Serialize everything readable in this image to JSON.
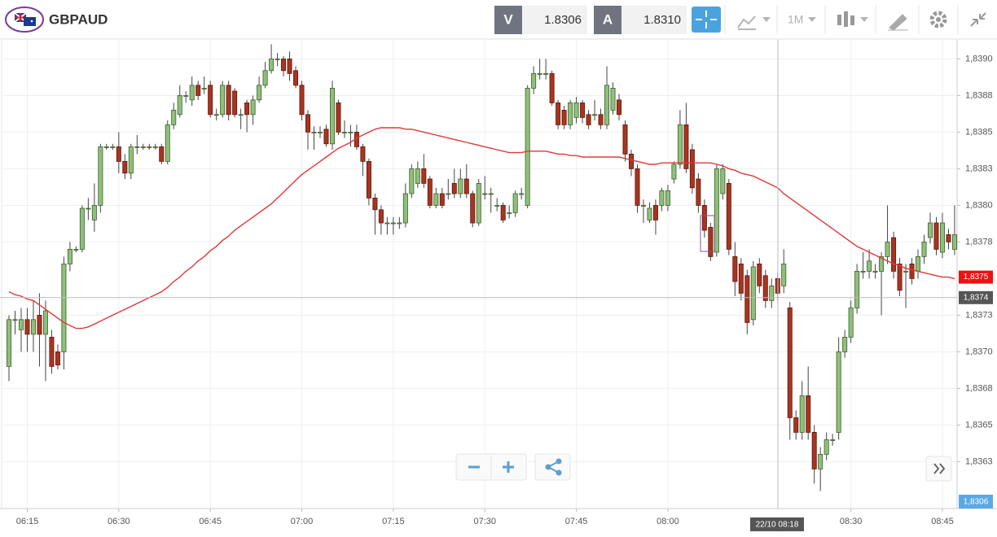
{
  "toolbar": {
    "symbol": "GBPAUD",
    "bid_label": "V",
    "bid": "1.8306",
    "ask_label": "A",
    "ask": "1.8310",
    "timeframe": "1M"
  },
  "chart_data": {
    "type": "candlestick",
    "categories": [
      null,
      null,
      null,
      "06:15",
      null,
      null,
      null,
      null,
      null,
      null,
      null,
      null,
      null,
      null,
      null,
      null,
      null,
      null,
      "06:30",
      null,
      null,
      null,
      null,
      null,
      null,
      null,
      null,
      null,
      null,
      null,
      null,
      null,
      null,
      "06:45",
      null,
      null,
      null,
      null,
      null,
      null,
      null,
      null,
      null,
      null,
      null,
      null,
      null,
      null,
      "07:00",
      null,
      null,
      null,
      null,
      null,
      null,
      null,
      null,
      null,
      null,
      null,
      null,
      null,
      null,
      "07:15",
      null,
      null,
      null,
      null,
      null,
      null,
      null,
      null,
      null,
      null,
      null,
      null,
      null,
      null,
      "07:30",
      null,
      null,
      null,
      null,
      null,
      null,
      null,
      null,
      null,
      null,
      null,
      null,
      null,
      null,
      "07:45",
      null,
      null,
      null,
      null,
      null,
      null,
      null,
      null,
      null,
      null,
      null,
      null,
      null,
      null,
      "08:00",
      null,
      null,
      null,
      null,
      null,
      null,
      null,
      null,
      null,
      null,
      null,
      null,
      null,
      null,
      null,
      null,
      null,
      null,
      null,
      null,
      null,
      null,
      null,
      null,
      null,
      null,
      null,
      null,
      null,
      "08:30",
      null,
      null,
      null,
      null,
      null,
      null,
      null,
      null,
      null,
      null,
      null,
      null,
      null,
      null,
      "08:45",
      null,
      null
    ],
    "open": [
      1.8369,
      1.83722,
      1.83715,
      1.83722,
      1.83712,
      1.83725,
      1.83712,
      1.8371,
      1.837,
      1.837,
      1.8376,
      1.8377,
      1.8377,
      1.83798,
      1.8379,
      1.838,
      1.8384,
      1.8384,
      1.8384,
      1.8383,
      1.83822,
      1.8384,
      1.8384,
      1.8384,
      1.8384,
      1.8384,
      1.8383,
      1.83855,
      1.83862,
      1.83875,
      1.83872,
      1.83882,
      1.8388,
      1.83882,
      1.83862,
      1.83862,
      1.83882,
      1.83878,
      1.83862,
      1.8387,
      1.83862,
      1.83872,
      1.83882,
      1.83892,
      1.839,
      1.839,
      1.839,
      1.83892,
      1.83882,
      1.83862,
      1.8385,
      1.8385,
      1.83852,
      1.83842,
      1.8387,
      1.8385,
      1.8385,
      1.8385,
      1.8384,
      1.8383,
      1.83805,
      1.83797,
      1.83788,
      1.83788,
      1.83788,
      1.83788,
      1.83808,
      1.83815,
      1.83825,
      1.83818,
      1.838,
      1.83808,
      1.83808,
      1.83815,
      1.83808,
      1.83818,
      1.83808,
      1.83788,
      1.83808,
      1.83808,
      1.838,
      1.838,
      1.83795,
      1.83795,
      1.83808,
      1.838,
      1.8388,
      1.8389,
      1.8389,
      1.8389,
      1.8387,
      1.83865,
      1.83855,
      1.8386,
      1.8387,
      1.83862,
      1.83862,
      1.83862,
      1.83855,
      1.83865,
      1.83872,
      1.83855,
      1.83835,
      1.83825,
      1.838,
      1.8379,
      1.838,
      1.838,
      1.838,
      1.83818,
      1.83828,
      1.83855,
      1.83838,
      1.83818,
      1.838,
      1.83785,
      1.83768,
      1.83808,
      1.83815,
      1.83765,
      1.8376,
      1.83752,
      1.83722,
      1.8376,
      1.83752,
      1.83735,
      1.8375,
      1.83745,
      1.8373,
      1.83655,
      1.83645,
      1.8367,
      1.83645,
      1.8362,
      1.8363,
      1.8364,
      1.83645,
      1.837,
      1.8371,
      1.8373,
      1.83755,
      1.83755,
      1.83755,
      1.83755,
      1.83765,
      1.83778,
      1.8376,
      1.83755,
      1.8376,
      1.83755,
      1.83765,
      1.83778,
      1.83788,
      1.83768,
      1.8378,
      1.8377
    ],
    "high": [
      1.83725,
      1.83728,
      1.8373,
      1.8373,
      1.83735,
      1.8374,
      1.83735,
      1.83715,
      1.83705,
      1.83765,
      1.83775,
      1.83772,
      1.838,
      1.83805,
      1.83815,
      1.83842,
      1.83842,
      1.83842,
      1.8385,
      1.83835,
      1.83842,
      1.83848,
      1.83842,
      1.83842,
      1.83842,
      1.83842,
      1.83858,
      1.8387,
      1.83882,
      1.83878,
      1.83888,
      1.83885,
      1.83888,
      1.83885,
      1.83866,
      1.83885,
      1.83885,
      1.8388,
      1.83866,
      1.83872,
      1.83875,
      1.83888,
      1.83898,
      1.8391,
      1.83904,
      1.83902,
      1.83905,
      1.83895,
      1.83885,
      1.83865,
      1.83854,
      1.83854,
      1.83855,
      1.83885,
      1.83872,
      1.83858,
      1.83855,
      1.83855,
      1.83842,
      1.83832,
      1.83808,
      1.838,
      1.83792,
      1.83792,
      1.83792,
      1.83815,
      1.83828,
      1.8383,
      1.83835,
      1.8382,
      1.83812,
      1.83812,
      1.83818,
      1.83825,
      1.83825,
      1.83828,
      1.8381,
      1.83818,
      1.8382,
      1.83812,
      1.83805,
      1.83802,
      1.838,
      1.8381,
      1.83812,
      1.83882,
      1.83895,
      1.839,
      1.839,
      1.83892,
      1.83872,
      1.83868,
      1.83872,
      1.83874,
      1.83872,
      1.83865,
      1.83872,
      1.83866,
      1.83895,
      1.83884,
      1.83876,
      1.83858,
      1.83838,
      1.83828,
      1.83804,
      1.83802,
      1.83804,
      1.83812,
      1.83814,
      1.8383,
      1.83865,
      1.8387,
      1.83842,
      1.83822,
      1.83804,
      1.83788,
      1.83828,
      1.83828,
      1.83818,
      1.83775,
      1.83764,
      1.83756,
      1.83762,
      1.83764,
      1.83756,
      1.8375,
      1.83754,
      1.8377,
      1.83734,
      1.8366,
      1.8368,
      1.8369,
      1.8365,
      1.83635,
      1.83645,
      1.83644,
      1.8371,
      1.83715,
      1.83735,
      1.8376,
      1.83768,
      1.8377,
      1.8376,
      1.83768,
      1.838,
      1.83782,
      1.83764,
      1.8376,
      1.83764,
      1.8377,
      1.8378,
      1.83795,
      1.83792,
      1.83795,
      1.83784,
      1.838
    ],
    "low": [
      1.8368,
      1.83712,
      1.837,
      1.837,
      1.837,
      1.8369,
      1.8368,
      1.83685,
      1.83688,
      1.83688,
      1.83755,
      1.83768,
      1.83768,
      1.8379,
      1.83782,
      1.83795,
      1.83838,
      1.83838,
      1.83822,
      1.83818,
      1.83818,
      1.83835,
      1.83838,
      1.83838,
      1.83838,
      1.83828,
      1.83828,
      1.83852,
      1.8386,
      1.8387,
      1.83868,
      1.83872,
      1.83876,
      1.8386,
      1.83858,
      1.8386,
      1.83858,
      1.8386,
      1.83852,
      1.8385,
      1.83855,
      1.8387,
      1.8388,
      1.8389,
      1.83895,
      1.83888,
      1.83885,
      1.8388,
      1.83858,
      1.83838,
      1.83838,
      1.83846,
      1.8384,
      1.83838,
      1.83848,
      1.83846,
      1.8384,
      1.83838,
      1.8382,
      1.838,
      1.8378,
      1.8378,
      1.8378,
      1.8378,
      1.83784,
      1.83785,
      1.83805,
      1.83812,
      1.83812,
      1.83798,
      1.83798,
      1.83798,
      1.83804,
      1.83805,
      1.83805,
      1.83805,
      1.83785,
      1.83786,
      1.83804,
      1.83795,
      1.83796,
      1.83788,
      1.83791,
      1.83792,
      1.83804,
      1.83798,
      1.83876,
      1.83886,
      1.83886,
      1.83868,
      1.83852,
      1.83852,
      1.83852,
      1.83856,
      1.83856,
      1.83852,
      1.83858,
      1.83852,
      1.83852,
      1.83862,
      1.83858,
      1.8383,
      1.8382,
      1.83795,
      1.83788,
      1.83788,
      1.8378,
      1.83796,
      1.83796,
      1.83815,
      1.83825,
      1.83822,
      1.83808,
      1.83795,
      1.83778,
      1.83762,
      1.83765,
      1.83804,
      1.83766,
      1.83738,
      1.83735,
      1.83712,
      1.83718,
      1.8374,
      1.8373,
      1.8373,
      1.83735,
      1.8374,
      1.8364,
      1.8364,
      1.8364,
      1.8364,
      1.8361,
      1.83605,
      1.83626,
      1.83636,
      1.8364,
      1.83696,
      1.83706,
      1.83726,
      1.8375,
      1.8375,
      1.8375,
      1.83725,
      1.8376,
      1.8375,
      1.83738,
      1.8373,
      1.83746,
      1.8375,
      1.8376,
      1.83774,
      1.83766,
      1.83764,
      1.8377,
      1.83766
    ],
    "close": [
      1.83722,
      1.83722,
      1.83722,
      1.83712,
      1.83722,
      1.83712,
      1.83728,
      1.8369,
      1.83691,
      1.8376,
      1.8377,
      1.8377,
      1.83798,
      1.83798,
      1.838,
      1.8384,
      1.8384,
      1.8384,
      1.8383,
      1.83822,
      1.8384,
      1.8384,
      1.8384,
      1.8384,
      1.8384,
      1.8383,
      1.83855,
      1.83865,
      1.83875,
      1.83875,
      1.83882,
      1.83875,
      1.8388,
      1.83862,
      1.83862,
      1.83882,
      1.83862,
      1.83862,
      1.83862,
      1.83862,
      1.83872,
      1.83882,
      1.83892,
      1.839,
      1.839,
      1.83892,
      1.8389,
      1.83882,
      1.83862,
      1.8385,
      1.8385,
      1.8385,
      1.83842,
      1.8388,
      1.8385,
      1.8385,
      1.8385,
      1.8384,
      1.8383,
      1.83805,
      1.83797,
      1.83788,
      1.83788,
      1.83788,
      1.83788,
      1.83808,
      1.83825,
      1.83825,
      1.83815,
      1.838,
      1.83808,
      1.838,
      1.83808,
      1.83808,
      1.83818,
      1.83808,
      1.83788,
      1.83815,
      1.83808,
      1.83808,
      1.838,
      1.8379,
      1.83795,
      1.83808,
      1.83808,
      1.8388,
      1.8389,
      1.8389,
      1.8389,
      1.8387,
      1.83855,
      1.83855,
      1.8387,
      1.8387,
      1.8386,
      1.83855,
      1.83862,
      1.83855,
      1.83882,
      1.8388,
      1.83862,
      1.83835,
      1.83825,
      1.838,
      1.838,
      1.83798,
      1.8379,
      1.8381,
      1.8381,
      1.83828,
      1.83855,
      1.83825,
      1.83812,
      1.838,
      1.83783,
      1.83765,
      1.83825,
      1.83825,
      1.8377,
      1.83748,
      1.8374,
      1.8372,
      1.83758,
      1.83745,
      1.83735,
      1.83745,
      1.8374,
      1.8376,
      1.83655,
      1.83645,
      1.8367,
      1.83645,
      1.8362,
      1.8363,
      1.8364,
      1.8364,
      1.837,
      1.8371,
      1.8373,
      1.83755,
      1.83755,
      1.83762,
      1.83755,
      1.83765,
      1.83775,
      1.83755,
      1.83742,
      1.83755,
      1.8375,
      1.83765,
      1.83775,
      1.83788,
      1.8377,
      1.83788,
      1.83775,
      1.8378
    ],
    "up_color": "#8fc07a",
    "down_color": "#a9341f",
    "ma": {
      "color": "#e0383a",
      "values": [
        1.83741,
        1.83739,
        1.83738,
        1.83736,
        1.83735,
        1.83732,
        1.83729,
        1.83726,
        1.83723,
        1.8372,
        1.83718,
        1.83716,
        1.83716,
        1.83717,
        1.83719,
        1.83721,
        1.83723,
        1.83725,
        1.83727,
        1.83729,
        1.83731,
        1.83733,
        1.83735,
        1.83737,
        1.83739,
        1.83741,
        1.83744,
        1.83748,
        1.83751,
        1.83755,
        1.83758,
        1.83762,
        1.83765,
        1.83769,
        1.83772,
        1.83776,
        1.83779,
        1.83783,
        1.83786,
        1.83789,
        1.83792,
        1.83795,
        1.83798,
        1.83801,
        1.83805,
        1.83809,
        1.83813,
        1.83817,
        1.83821,
        1.83824,
        1.83827,
        1.8383,
        1.83833,
        1.83836,
        1.83839,
        1.83841,
        1.83843,
        1.83846,
        1.83848,
        1.8385,
        1.83852,
        1.83853,
        1.83853,
        1.83853,
        1.83853,
        1.83852,
        1.83852,
        1.83851,
        1.8385,
        1.83849,
        1.83848,
        1.83847,
        1.83846,
        1.83845,
        1.83844,
        1.83843,
        1.83842,
        1.83841,
        1.8384,
        1.83839,
        1.83838,
        1.83837,
        1.83836,
        1.83836,
        1.83836,
        1.83837,
        1.83837,
        1.83837,
        1.83837,
        1.83836,
        1.83835,
        1.83835,
        1.83834,
        1.83834,
        1.83833,
        1.83833,
        1.83833,
        1.83833,
        1.83833,
        1.83833,
        1.83833,
        1.83832,
        1.83831,
        1.8383,
        1.83829,
        1.83828,
        1.83828,
        1.83829,
        1.83829,
        1.83829,
        1.83829,
        1.83829,
        1.83829,
        1.83829,
        1.83829,
        1.83829,
        1.83828,
        1.83827,
        1.83825,
        1.83824,
        1.83822,
        1.83821,
        1.8382,
        1.83818,
        1.83816,
        1.83814,
        1.83812,
        1.83808,
        1.83805,
        1.83802,
        1.83799,
        1.83796,
        1.83793,
        1.8379,
        1.83787,
        1.83784,
        1.83781,
        1.83778,
        1.83775,
        1.83772,
        1.8377,
        1.83768,
        1.83766,
        1.83764,
        1.83762,
        1.8376,
        1.83759,
        1.83757,
        1.83756,
        1.83755,
        1.83754,
        1.83753,
        1.83752,
        1.83751,
        1.83751,
        1.8375
      ]
    },
    "ylim": [
      1.83593,
      1.83913
    ],
    "yticks": [
      {
        "value": 1.839,
        "label": "1,8390"
      },
      {
        "value": 1.83875,
        "label": "1,8388"
      },
      {
        "value": 1.8385,
        "label": "1,8385"
      },
      {
        "value": 1.83825,
        "label": "1,8383"
      },
      {
        "value": 1.838,
        "label": "1,8380"
      },
      {
        "value": 1.83775,
        "label": "1,8378"
      },
      {
        "value": 1.83725,
        "label": "1,8373"
      },
      {
        "value": 1.837,
        "label": "1,8370"
      },
      {
        "value": 1.83675,
        "label": "1,8368"
      },
      {
        "value": 1.8365,
        "label": "1,8365"
      },
      {
        "value": 1.83625,
        "label": "1,8363"
      }
    ],
    "grid": true,
    "last_price": {
      "value": 1.83751,
      "label": "1,8375"
    },
    "crosshair": {
      "time_label": "22/10 08:18",
      "price": {
        "value": 1.83737,
        "label": "1,8374"
      }
    },
    "bid_marker": "1,8306"
  }
}
